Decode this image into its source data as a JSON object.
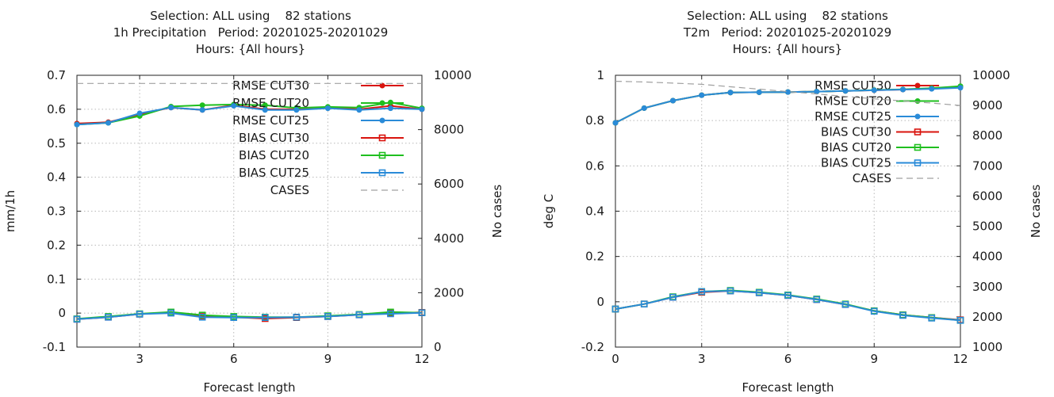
{
  "series_styles": [
    {
      "color": "#d9140e",
      "marker": "dot"
    },
    {
      "color": "#1fbf1f",
      "marker": "dot"
    },
    {
      "color": "#2a8bd8",
      "marker": "dot"
    },
    {
      "color": "#d9140e",
      "marker": "square"
    },
    {
      "color": "#1fbf1f",
      "marker": "square"
    },
    {
      "color": "#2a8bd8",
      "marker": "square"
    },
    {
      "color": "#a0a0a0",
      "marker": "dash"
    }
  ],
  "chart_data": [
    {
      "type": "line",
      "title": [
        "Selection: ALL using    82 stations",
        "1h Precipitation   Period: 20201025-20201029",
        "Hours: {All hours}"
      ],
      "xlabel": "Forecast length",
      "ylabel": "mm/1h",
      "y2label": "No cases",
      "xlim": [
        1,
        12
      ],
      "ylim": [
        -0.1,
        0.7
      ],
      "y2lim": [
        0,
        10000
      ],
      "xticks": [
        "3",
        "6",
        "9",
        "12"
      ],
      "xtick_values": [
        3,
        6,
        9,
        12
      ],
      "yticks": [
        "-0.1",
        "0",
        "0.1",
        "0.2",
        "0.3",
        "0.4",
        "0.5",
        "0.6",
        "0.7"
      ],
      "ytick_values": [
        -0.1,
        0,
        0.1,
        0.2,
        0.3,
        0.4,
        0.5,
        0.6,
        0.7
      ],
      "y2ticks": [
        "0",
        "2000",
        "4000",
        "6000",
        "8000",
        "10000"
      ],
      "y2tick_values": [
        0,
        2000,
        4000,
        6000,
        8000,
        10000
      ],
      "grid": true,
      "legend_position": "top-right",
      "x": [
        1,
        2,
        3,
        4,
        5,
        6,
        7,
        8,
        9,
        10,
        11,
        12
      ],
      "series": [
        {
          "name": "RMSE CUT30",
          "axis": "y",
          "values": [
            0.558,
            0.562,
            0.585,
            0.605,
            0.598,
            0.612,
            0.6,
            0.6,
            0.605,
            0.6,
            0.61,
            0.6
          ]
        },
        {
          "name": "RMSE CUT20",
          "axis": "y",
          "values": [
            0.555,
            0.56,
            0.58,
            0.608,
            0.612,
            0.614,
            0.612,
            0.604,
            0.607,
            0.605,
            0.62,
            0.603
          ]
        },
        {
          "name": "RMSE CUT25",
          "axis": "y",
          "values": [
            0.555,
            0.56,
            0.588,
            0.605,
            0.598,
            0.61,
            0.598,
            0.598,
            0.603,
            0.598,
            0.603,
            0.6
          ]
        },
        {
          "name": "BIAS CUT30",
          "axis": "y",
          "values": [
            -0.018,
            -0.012,
            -0.003,
            0.002,
            -0.008,
            -0.012,
            -0.016,
            -0.013,
            -0.01,
            -0.005,
            0,
            0.002
          ]
        },
        {
          "name": "BIAS CUT20",
          "axis": "y",
          "values": [
            -0.017,
            -0.01,
            -0.002,
            0.003,
            -0.006,
            -0.01,
            -0.012,
            -0.012,
            -0.008,
            -0.004,
            0.003,
            0.001
          ]
        },
        {
          "name": "BIAS CUT25",
          "axis": "y",
          "values": [
            -0.018,
            -0.012,
            -0.003,
            0,
            -0.012,
            -0.013,
            -0.013,
            -0.012,
            -0.01,
            -0.005,
            -0.002,
            0.001
          ]
        },
        {
          "name": "CASES",
          "axis": "y2",
          "values": [
            9700,
            9700,
            9700,
            9700,
            9700,
            9700,
            9700,
            9700,
            9700,
            9700,
            9700,
            9700
          ]
        }
      ]
    },
    {
      "type": "line",
      "title": [
        "Selection: ALL using    82 stations",
        "T2m   Period: 20201025-20201029",
        "Hours: {All hours}"
      ],
      "xlabel": "Forecast length",
      "ylabel": "deg C",
      "y2label": "No cases",
      "xlim": [
        0,
        12
      ],
      "ylim": [
        -0.2,
        1
      ],
      "y2lim": [
        1000,
        10000
      ],
      "xticks": [
        "0",
        "3",
        "6",
        "9",
        "12"
      ],
      "xtick_values": [
        0,
        3,
        6,
        9,
        12
      ],
      "yticks": [
        "-0.2",
        "0",
        "0.2",
        "0.4",
        "0.6",
        "0.8",
        "1"
      ],
      "ytick_values": [
        -0.2,
        0,
        0.2,
        0.4,
        0.6,
        0.8,
        1
      ],
      "y2ticks": [
        "1000",
        "2000",
        "3000",
        "4000",
        "5000",
        "6000",
        "7000",
        "8000",
        "9000",
        "10000"
      ],
      "y2tick_values": [
        1000,
        2000,
        3000,
        4000,
        5000,
        6000,
        7000,
        8000,
        9000,
        10000
      ],
      "grid": true,
      "legend_position": "top-right",
      "x": [
        0,
        1,
        2,
        3,
        4,
        5,
        6,
        7,
        8,
        9,
        10,
        11,
        12
      ],
      "series": [
        {
          "name": "RMSE CUT30",
          "axis": "y",
          "values": [
            0.79,
            0.855,
            0.888,
            0.912,
            0.924,
            0.925,
            0.926,
            0.928,
            0.931,
            0.934,
            0.937,
            0.942,
            0.95
          ]
        },
        {
          "name": "RMSE CUT20",
          "axis": "y",
          "values": [
            0.79,
            0.855,
            0.888,
            0.912,
            0.924,
            0.925,
            0.926,
            0.928,
            0.931,
            0.935,
            0.938,
            0.943,
            0.952
          ]
        },
        {
          "name": "RMSE CUT25",
          "axis": "y",
          "values": [
            0.79,
            0.855,
            0.888,
            0.912,
            0.924,
            0.925,
            0.926,
            0.928,
            0.931,
            0.934,
            0.937,
            0.94,
            0.945
          ]
        },
        {
          "name": "BIAS CUT30",
          "axis": "y",
          "values": [
            -0.032,
            -0.01,
            0.02,
            0.042,
            0.048,
            0.04,
            0.028,
            0.01,
            -0.012,
            -0.04,
            -0.058,
            -0.07,
            -0.08
          ]
        },
        {
          "name": "BIAS CUT20",
          "axis": "y",
          "values": [
            -0.032,
            -0.01,
            0.022,
            0.045,
            0.05,
            0.042,
            0.03,
            0.012,
            -0.01,
            -0.04,
            -0.058,
            -0.07,
            -0.082
          ]
        },
        {
          "name": "BIAS CUT25",
          "axis": "y",
          "values": [
            -0.032,
            -0.01,
            0.02,
            0.045,
            0.048,
            0.04,
            0.028,
            0.01,
            -0.012,
            -0.042,
            -0.06,
            -0.072,
            -0.082
          ]
        },
        {
          "name": "CASES",
          "axis": "y2",
          "values": [
            9800,
            9780,
            9740,
            9700,
            9620,
            9540,
            9460,
            9380,
            9300,
            9220,
            9150,
            9080,
            9000
          ]
        }
      ]
    }
  ]
}
